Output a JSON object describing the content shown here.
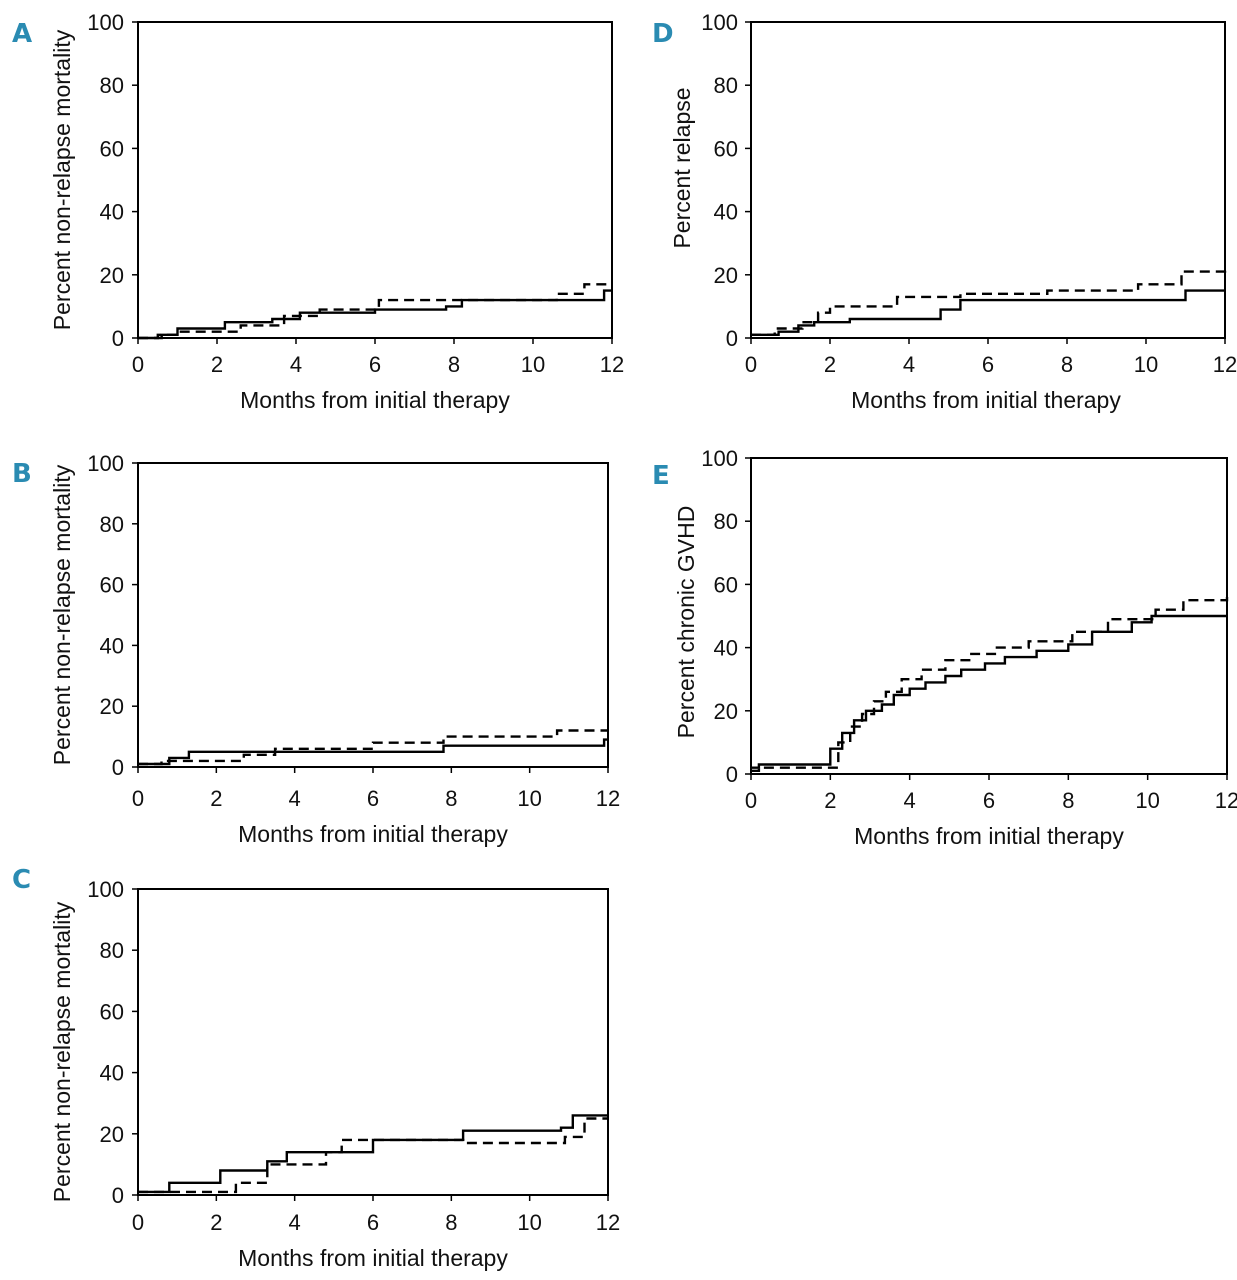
{
  "chart_data": [
    {
      "panel": "A",
      "type": "line",
      "step": true,
      "xlabel": "Months from initial therapy",
      "ylabel": "Percent non-relapse mortality",
      "xlim": [
        0,
        12
      ],
      "ylim": [
        0,
        100
      ],
      "xticks": [
        "0",
        "2",
        "4",
        "6",
        "8",
        "10",
        "12"
      ],
      "yticks": [
        "0",
        "20",
        "40",
        "60",
        "80",
        "100"
      ],
      "series": [
        {
          "name": "solid",
          "style": "solid",
          "x": [
            0,
            0.6,
            1.0,
            2.2,
            3.4,
            4.1,
            6.0,
            7.8,
            8.2,
            11.8,
            12
          ],
          "y": [
            0,
            1,
            3,
            5,
            6,
            8,
            9,
            10,
            12,
            15,
            15
          ]
        },
        {
          "name": "dashed",
          "style": "dashed",
          "x": [
            0,
            0.5,
            1.0,
            2.6,
            3.7,
            4.6,
            6.1,
            8.0,
            10.6,
            11.3,
            12
          ],
          "y": [
            0,
            1,
            2,
            4,
            7,
            9,
            12,
            12,
            14,
            17,
            17
          ]
        }
      ]
    },
    {
      "panel": "B",
      "type": "line",
      "step": true,
      "xlabel": "Months from initial therapy",
      "ylabel": "Percent non-relapse mortality",
      "xlim": [
        0,
        12
      ],
      "ylim": [
        0,
        100
      ],
      "xticks": [
        "0",
        "2",
        "4",
        "6",
        "8",
        "10",
        "12"
      ],
      "yticks": [
        "0",
        "20",
        "40",
        "60",
        "80",
        "100"
      ],
      "series": [
        {
          "name": "solid",
          "style": "solid",
          "x": [
            0,
            0.8,
            1.3,
            3.2,
            7.8,
            11.9,
            12
          ],
          "y": [
            1,
            3,
            5,
            5,
            7,
            9,
            9
          ]
        },
        {
          "name": "dashed",
          "style": "dashed",
          "x": [
            0,
            0.6,
            2.7,
            3.5,
            6.0,
            7.8,
            10.7,
            12
          ],
          "y": [
            1,
            2,
            4,
            6,
            8,
            10,
            12,
            12
          ]
        }
      ]
    },
    {
      "panel": "C",
      "type": "line",
      "step": true,
      "xlabel": "Months from initial therapy",
      "ylabel": "Percent non-relapse mortality",
      "xlim": [
        0,
        12
      ],
      "ylim": [
        0,
        100
      ],
      "xticks": [
        "0",
        "2",
        "4",
        "6",
        "8",
        "10",
        "12"
      ],
      "yticks": [
        "0",
        "20",
        "40",
        "60",
        "80",
        "100"
      ],
      "series": [
        {
          "name": "solid",
          "style": "solid",
          "x": [
            0,
            0.8,
            2.1,
            3.3,
            3.8,
            6.0,
            8.3,
            10.8,
            11.1,
            12
          ],
          "y": [
            1,
            4,
            8,
            11,
            14,
            18,
            21,
            22,
            26,
            26
          ]
        },
        {
          "name": "dashed",
          "style": "dashed",
          "x": [
            0,
            2.5,
            3.3,
            4.8,
            5.2,
            8.3,
            10.9,
            11.4,
            12
          ],
          "y": [
            1,
            4,
            10,
            14,
            18,
            17,
            19,
            25,
            25
          ]
        }
      ]
    },
    {
      "panel": "D",
      "type": "line",
      "step": true,
      "xlabel": "Months from initial therapy",
      "ylabel": "Percent relapse",
      "xlim": [
        0,
        12
      ],
      "ylim": [
        0,
        100
      ],
      "xticks": [
        "0",
        "2",
        "4",
        "6",
        "8",
        "10",
        "12"
      ],
      "yticks": [
        "0",
        "20",
        "40",
        "60",
        "80",
        "100"
      ],
      "series": [
        {
          "name": "solid",
          "style": "solid",
          "x": [
            0,
            0.7,
            1.2,
            1.6,
            2.5,
            4.8,
            5.3,
            11.0,
            12
          ],
          "y": [
            1,
            2,
            4,
            5,
            6,
            9,
            12,
            15,
            15
          ]
        },
        {
          "name": "dashed",
          "style": "dashed",
          "x": [
            0,
            0.6,
            1.3,
            1.7,
            2.0,
            3.7,
            5.3,
            7.5,
            9.8,
            10.9,
            12
          ],
          "y": [
            1,
            3,
            5,
            8,
            10,
            13,
            14,
            15,
            17,
            21,
            23
          ]
        }
      ]
    },
    {
      "panel": "E",
      "type": "line",
      "step": true,
      "xlabel": "Months from initial therapy",
      "ylabel": "Percent chronic GVHD",
      "xlim": [
        0,
        12
      ],
      "ylim": [
        0,
        100
      ],
      "xticks": [
        "0",
        "2",
        "4",
        "6",
        "8",
        "10",
        "12"
      ],
      "yticks": [
        "0",
        "20",
        "40",
        "60",
        "80",
        "100"
      ],
      "series": [
        {
          "name": "solid",
          "style": "solid",
          "x": [
            0,
            0.2,
            1.7,
            2.0,
            2.3,
            2.6,
            2.9,
            3.3,
            3.6,
            4.0,
            4.4,
            4.9,
            5.3,
            5.9,
            6.4,
            7.2,
            8.0,
            8.6,
            9.6,
            10.1,
            12
          ],
          "y": [
            2,
            3,
            3,
            8,
            13,
            17,
            20,
            22,
            25,
            27,
            29,
            31,
            33,
            35,
            37,
            39,
            41,
            45,
            48,
            50,
            50
          ]
        },
        {
          "name": "dashed",
          "style": "dashed",
          "x": [
            0,
            0.2,
            1.8,
            2.2,
            2.5,
            2.8,
            3.1,
            3.4,
            3.8,
            4.3,
            4.9,
            5.5,
            6.2,
            7.0,
            8.1,
            9.0,
            10.2,
            10.9,
            12
          ],
          "y": [
            1,
            2,
            2,
            10,
            15,
            19,
            23,
            26,
            30,
            33,
            36,
            38,
            40,
            42,
            45,
            49,
            52,
            55,
            56
          ]
        }
      ]
    }
  ]
}
